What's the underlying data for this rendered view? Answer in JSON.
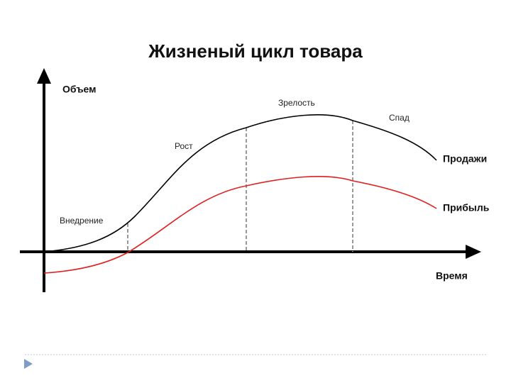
{
  "title": "Жизненый цикл товара",
  "axes": {
    "y_label": "Объем",
    "x_label": "Время"
  },
  "stages": [
    "Внедрение",
    "Рост",
    "Зрелость",
    "Спад"
  ],
  "curves": [
    "Продажи",
    "Прибыль"
  ]
}
